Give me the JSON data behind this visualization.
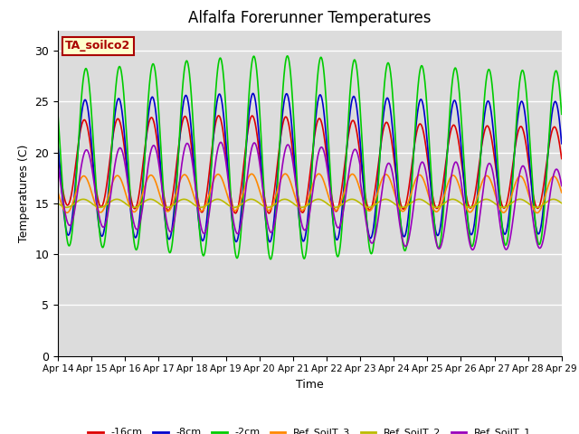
{
  "title": "Alfalfa Forerunner Temperatures",
  "xlabel": "Time",
  "ylabel": "Temperatures (C)",
  "ylim": [
    0,
    32
  ],
  "yticks": [
    0,
    5,
    10,
    15,
    20,
    25,
    30
  ],
  "x_labels": [
    "Apr 14",
    "Apr 15",
    "Apr 16",
    "Apr 17",
    "Apr 18",
    "Apr 19",
    "Apr 20",
    "Apr 21",
    "Apr 22",
    "Apr 23",
    "Apr 24",
    "Apr 25",
    "Apr 26",
    "Apr 27",
    "Apr 28",
    "Apr 29"
  ],
  "bg_color": "#dcdcdc",
  "fig_color": "#ffffff",
  "annotation_text": "TA_soilco2",
  "annotation_bg": "#ffffcc",
  "annotation_border": "#aa0000",
  "series_order": [
    "-16cm",
    "-8cm",
    "-2cm",
    "Ref_SoilT_3",
    "Ref_SoilT_2",
    "Ref_SoilT_1"
  ],
  "series": {
    "-16cm": {
      "color": "#dd0000",
      "lw": 1.2
    },
    "-8cm": {
      "color": "#0000cc",
      "lw": 1.2
    },
    "-2cm": {
      "color": "#00cc00",
      "lw": 1.2
    },
    "Ref_SoilT_3": {
      "color": "#ff8800",
      "lw": 1.2
    },
    "Ref_SoilT_2": {
      "color": "#bbbb00",
      "lw": 1.2
    },
    "Ref_SoilT_1": {
      "color": "#9900bb",
      "lw": 1.2
    }
  },
  "n_days": 15,
  "pts_per_day": 144
}
